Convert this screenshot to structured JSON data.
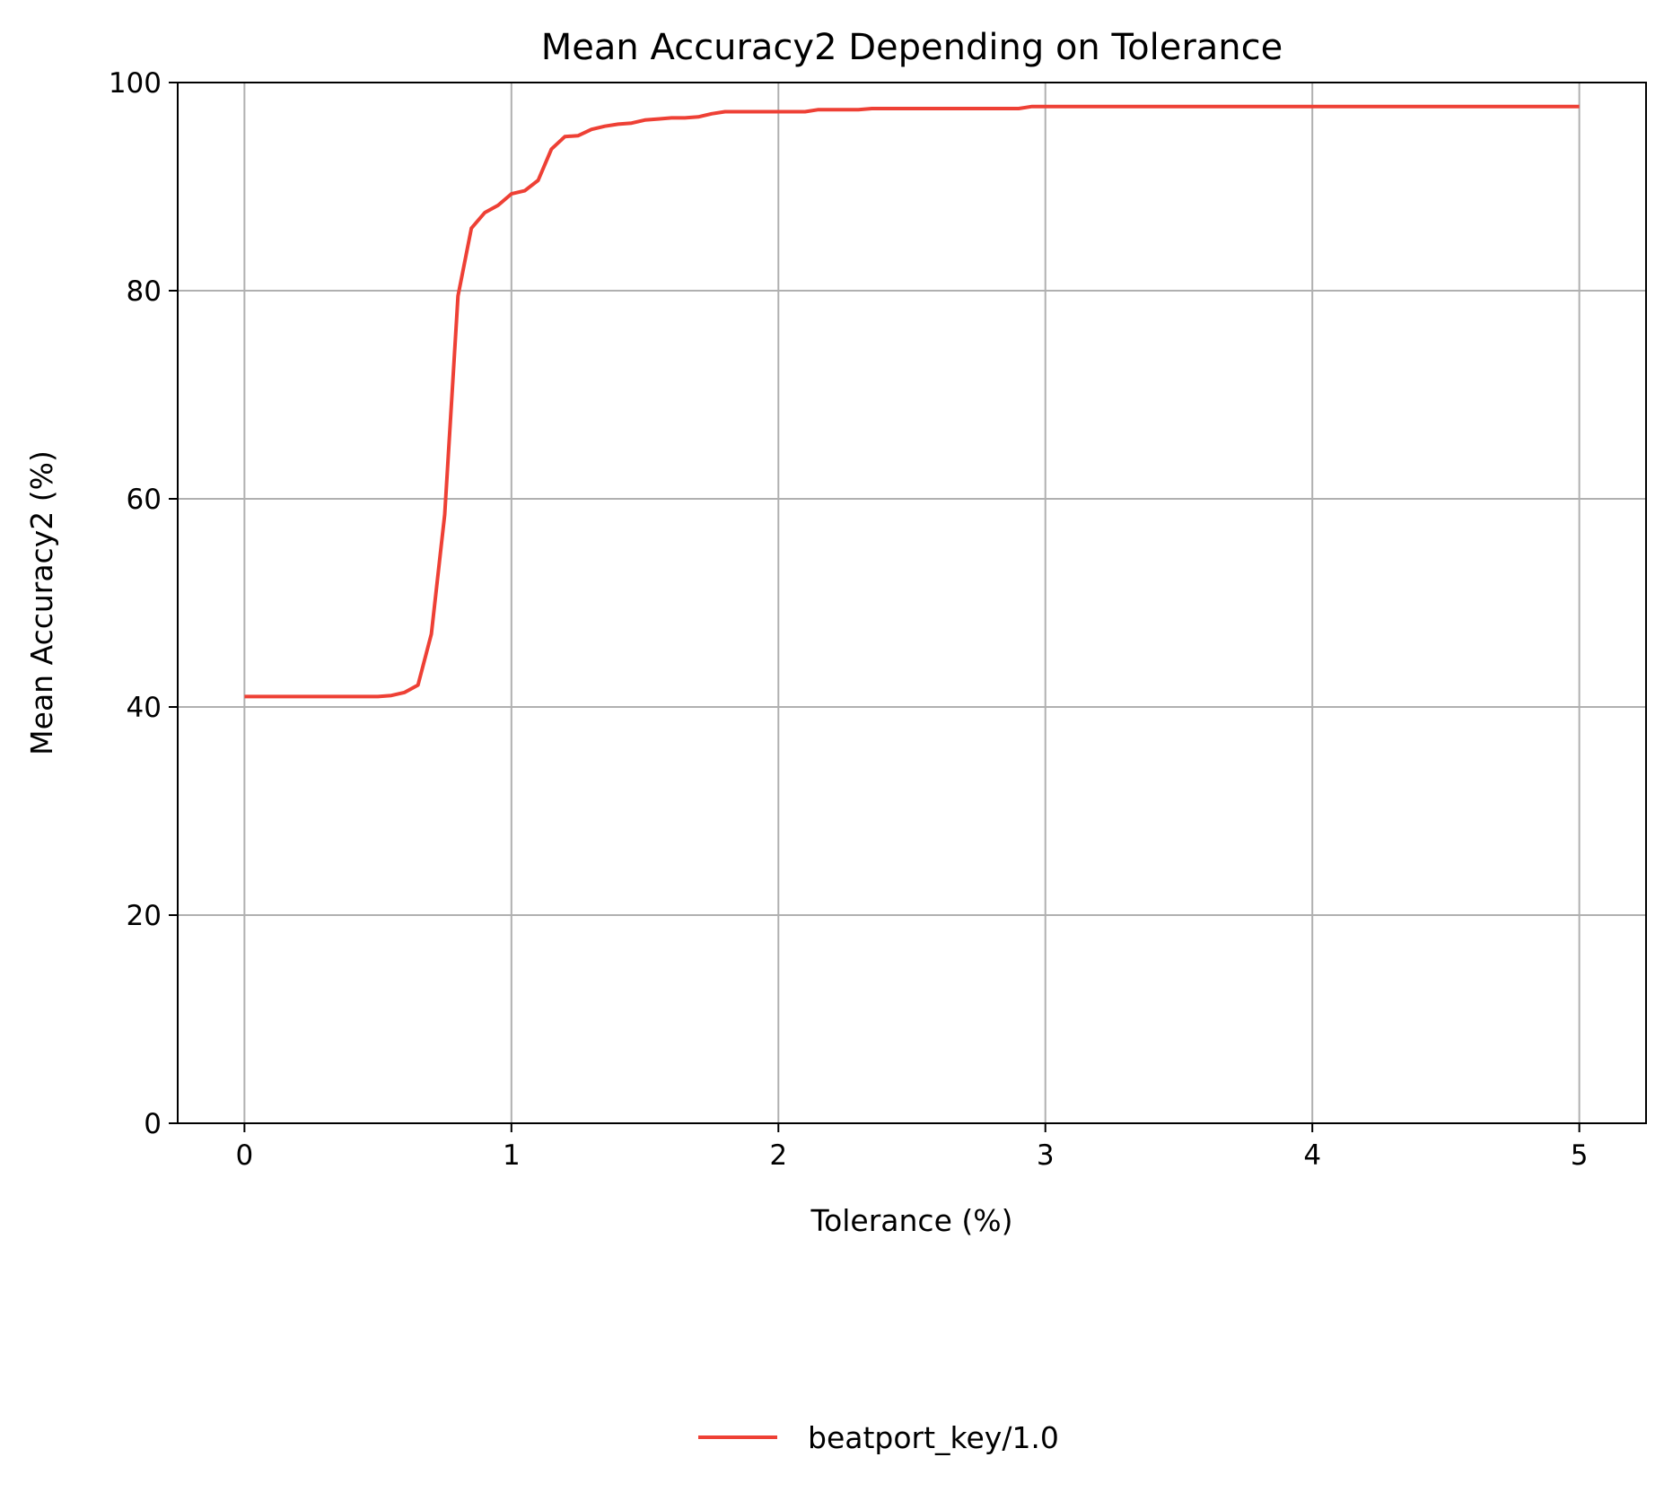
{
  "chart_data": {
    "type": "line",
    "title": "Mean Accuracy2 Depending on Tolerance",
    "xlabel": "Tolerance (%)",
    "ylabel": "Mean Accuracy2 (%)",
    "xlim": [
      -0.25,
      5.25
    ],
    "ylim": [
      0,
      100
    ],
    "xticks": [
      0,
      1,
      2,
      3,
      4,
      5
    ],
    "yticks": [
      0,
      20,
      40,
      60,
      80,
      100
    ],
    "grid": true,
    "legend_position": "bottom-center",
    "series": [
      {
        "name": "beatport_key/1.0",
        "color": "#ee4035",
        "x": [
          0,
          0.05,
          0.1,
          0.15,
          0.2,
          0.25,
          0.3,
          0.35,
          0.4,
          0.45,
          0.5,
          0.55,
          0.6,
          0.65,
          0.7,
          0.75,
          0.8,
          0.85,
          0.9,
          0.95,
          1.0,
          1.05,
          1.1,
          1.15,
          1.2,
          1.25,
          1.3,
          1.35,
          1.4,
          1.45,
          1.5,
          1.55,
          1.6,
          1.65,
          1.7,
          1.75,
          1.8,
          1.85,
          1.9,
          1.95,
          2.0,
          2.05,
          2.1,
          2.15,
          2.2,
          2.25,
          2.3,
          2.35,
          2.4,
          2.5,
          2.6,
          2.7,
          2.8,
          2.9,
          2.95,
          3.0,
          3.5,
          4.0,
          4.5,
          5.0
        ],
        "y": [
          41.0,
          41.0,
          41.0,
          41.0,
          41.0,
          41.0,
          41.0,
          41.0,
          41.0,
          41.0,
          41.0,
          41.1,
          41.4,
          42.1,
          47.0,
          58.5,
          79.5,
          86.0,
          87.5,
          88.2,
          89.3,
          89.6,
          90.6,
          93.6,
          94.8,
          94.9,
          95.5,
          95.8,
          96.0,
          96.1,
          96.4,
          96.5,
          96.6,
          96.6,
          96.7,
          97.0,
          97.2,
          97.2,
          97.2,
          97.2,
          97.2,
          97.2,
          97.2,
          97.4,
          97.4,
          97.4,
          97.4,
          97.5,
          97.5,
          97.5,
          97.5,
          97.5,
          97.5,
          97.5,
          97.7,
          97.7,
          97.7,
          97.7,
          97.7,
          97.7
        ]
      }
    ]
  }
}
